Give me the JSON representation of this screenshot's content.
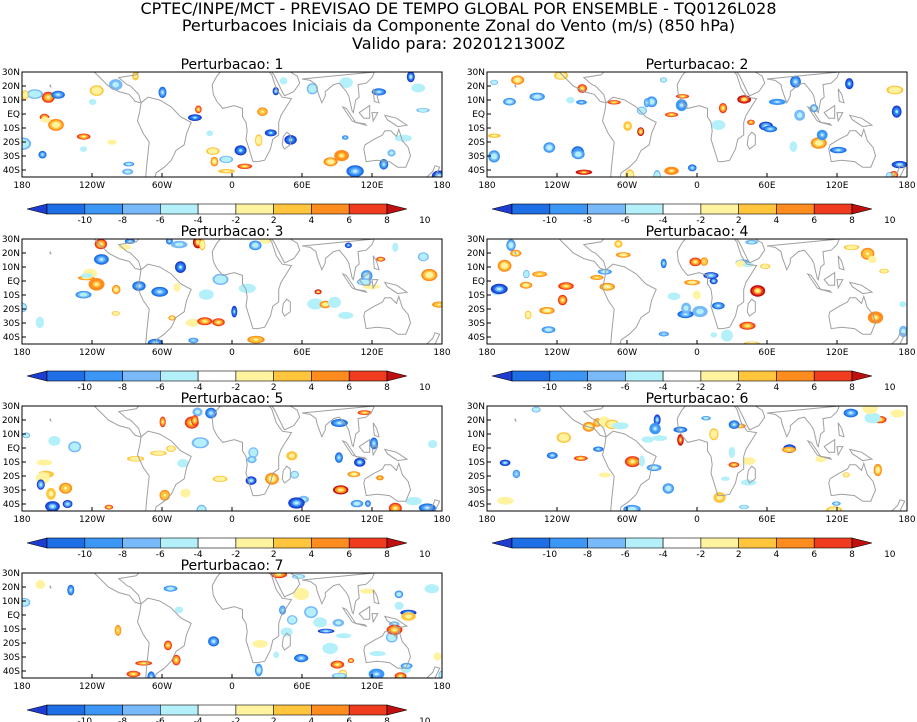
{
  "header": {
    "lines": [
      "CPTEC/INPE/MCT - PREVISAO DE TEMPO GLOBAL POR ENSEMBLE - TQ0126L028",
      "Perturbacoes Iniciais da Componente Zonal do Vento (m/s) (850 hPa)",
      "Valido para: 2020121300Z"
    ]
  },
  "chart_data": {
    "type": "heatmap",
    "variable": "Perturbacoes Iniciais da Componente Zonal do Vento",
    "units": "m/s",
    "level": "850 hPa",
    "valid_time": "2020121300Z",
    "xlim": [
      -180,
      180
    ],
    "ylim": [
      -45,
      30
    ],
    "x_ticks": [
      "180",
      "120W",
      "60W",
      "0",
      "60E",
      "120E",
      "180"
    ],
    "y_ticks": [
      "30N",
      "20N",
      "10N",
      "EQ",
      "10S",
      "20S",
      "30S",
      "40S"
    ],
    "colorbar": {
      "levels": [
        -10,
        -8,
        -6,
        -4,
        -2,
        2,
        4,
        6,
        8,
        10
      ],
      "labels": [
        "-10",
        "-8",
        "-6",
        "-4",
        "-2",
        "2",
        "4",
        "6",
        "8",
        "10"
      ],
      "colors": [
        "#1e3cd2",
        "#1e6ee6",
        "#3c96f5",
        "#78b9fa",
        "#b4f0fa",
        "#ffffff",
        "#fff3a0",
        "#ffc53c",
        "#ff8c1e",
        "#f03c1e",
        "#c00f0f"
      ]
    },
    "panels": [
      {
        "title": "Perturbacao: 1",
        "seed": 11
      },
      {
        "title": "Perturbacao: 2",
        "seed": 23
      },
      {
        "title": "Perturbacao: 3",
        "seed": 37
      },
      {
        "title": "Perturbacao: 4",
        "seed": 41
      },
      {
        "title": "Perturbacao: 5",
        "seed": 53
      },
      {
        "title": "Perturbacao: 6",
        "seed": 67
      },
      {
        "title": "Perturbacao: 7",
        "seed": 79
      }
    ]
  }
}
